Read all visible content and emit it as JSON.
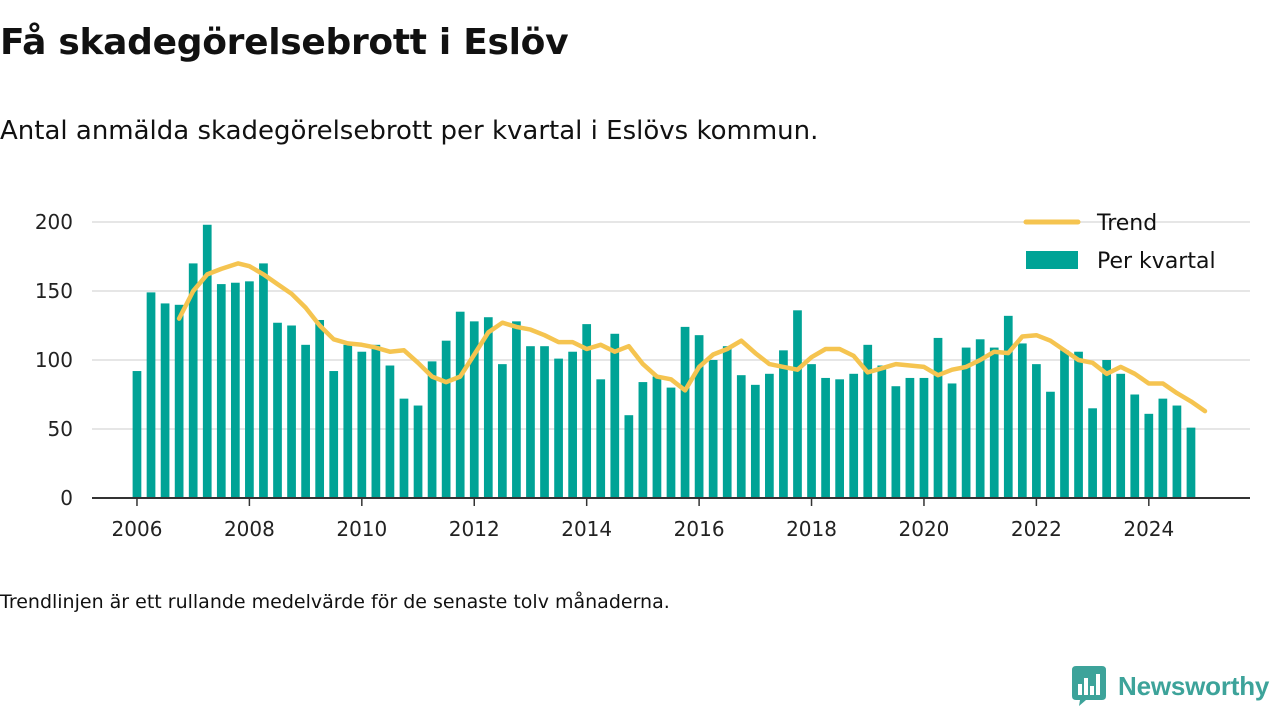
{
  "title": "Få skadegörelsebrott i Eslöv",
  "subtitle": "Antal anmälda skadegörelsebrott per kvartal i Eslövs kommun.",
  "footnote": "Trendlinjen är ett rullande medelvärde för de senaste tolv månaderna.",
  "brand": {
    "name": "Newsworthy",
    "icon": "newsworthy-logo-icon"
  },
  "colors": {
    "bars": "#00a396",
    "trend": "#f5c450",
    "grid": "#dddddd",
    "axis": "#333333",
    "brand": "#3da39a"
  },
  "chart_data": {
    "type": "bar",
    "x_start": "2006-Q1",
    "x_ticks": [
      2006,
      2008,
      2010,
      2012,
      2014,
      2016,
      2018,
      2020,
      2022,
      2024
    ],
    "xlim": [
      2005.2,
      2025.8
    ],
    "ylim": [
      0,
      200
    ],
    "y_ticks": [
      0,
      50,
      100,
      150,
      200
    ],
    "grid": true,
    "legend": {
      "placement": "top-right",
      "items": [
        {
          "label": "Trend",
          "kind": "line"
        },
        {
          "label": "Per kvartal",
          "kind": "bar"
        }
      ]
    },
    "series": [
      {
        "name": "Per kvartal",
        "kind": "bar",
        "values": [
          92,
          149,
          141,
          140,
          170,
          198,
          155,
          156,
          157,
          170,
          127,
          125,
          111,
          129,
          92,
          111,
          106,
          111,
          96,
          72,
          67,
          99,
          114,
          135,
          128,
          131,
          97,
          128,
          110,
          110,
          101,
          106,
          126,
          86,
          119,
          60,
          84,
          88,
          80,
          124,
          118,
          100,
          110,
          89,
          82,
          90,
          107,
          136,
          97,
          87,
          86,
          90,
          111,
          96,
          81,
          87,
          87,
          116,
          83,
          109,
          115,
          109,
          132,
          112,
          97,
          77,
          107,
          106,
          65,
          100,
          90,
          75,
          61,
          72,
          67,
          51
        ]
      },
      {
        "name": "Trend",
        "kind": "line",
        "points": [
          [
            2006.75,
            130
          ],
          [
            2007.0,
            150
          ],
          [
            2007.25,
            162
          ],
          [
            2007.5,
            166
          ],
          [
            2007.8,
            170
          ],
          [
            2008.0,
            168
          ],
          [
            2008.25,
            162
          ],
          [
            2008.5,
            155
          ],
          [
            2008.75,
            148
          ],
          [
            2009.0,
            138
          ],
          [
            2009.25,
            125
          ],
          [
            2009.5,
            115
          ],
          [
            2009.75,
            112
          ],
          [
            2010.0,
            111
          ],
          [
            2010.25,
            109
          ],
          [
            2010.5,
            106
          ],
          [
            2010.75,
            107
          ],
          [
            2011.0,
            98
          ],
          [
            2011.25,
            88
          ],
          [
            2011.5,
            84
          ],
          [
            2011.75,
            88
          ],
          [
            2012.0,
            104
          ],
          [
            2012.25,
            120
          ],
          [
            2012.5,
            127
          ],
          [
            2012.75,
            124
          ],
          [
            2013.0,
            122
          ],
          [
            2013.25,
            118
          ],
          [
            2013.5,
            113
          ],
          [
            2013.75,
            113
          ],
          [
            2014.0,
            108
          ],
          [
            2014.25,
            111
          ],
          [
            2014.5,
            106
          ],
          [
            2014.75,
            110
          ],
          [
            2015.0,
            97
          ],
          [
            2015.25,
            88
          ],
          [
            2015.5,
            86
          ],
          [
            2015.75,
            78
          ],
          [
            2016.0,
            95
          ],
          [
            2016.25,
            104
          ],
          [
            2016.5,
            108
          ],
          [
            2016.75,
            114
          ],
          [
            2017.0,
            105
          ],
          [
            2017.25,
            97
          ],
          [
            2017.5,
            95
          ],
          [
            2017.75,
            93
          ],
          [
            2018.0,
            102
          ],
          [
            2018.25,
            108
          ],
          [
            2018.5,
            108
          ],
          [
            2018.75,
            103
          ],
          [
            2019.0,
            91
          ],
          [
            2019.25,
            94
          ],
          [
            2019.5,
            97
          ],
          [
            2019.75,
            96
          ],
          [
            2020.0,
            95
          ],
          [
            2020.25,
            89
          ],
          [
            2020.5,
            93
          ],
          [
            2020.75,
            95
          ],
          [
            2021.0,
            100
          ],
          [
            2021.25,
            106
          ],
          [
            2021.5,
            105
          ],
          [
            2021.75,
            117
          ],
          [
            2022.0,
            118
          ],
          [
            2022.25,
            114
          ],
          [
            2022.5,
            107
          ],
          [
            2022.75,
            100
          ],
          [
            2023.0,
            98
          ],
          [
            2023.25,
            90
          ],
          [
            2023.5,
            95
          ],
          [
            2023.75,
            90
          ],
          [
            2024.0,
            83
          ],
          [
            2024.25,
            83
          ],
          [
            2024.5,
            76
          ],
          [
            2024.75,
            70
          ],
          [
            2025.0,
            63
          ]
        ]
      }
    ]
  }
}
